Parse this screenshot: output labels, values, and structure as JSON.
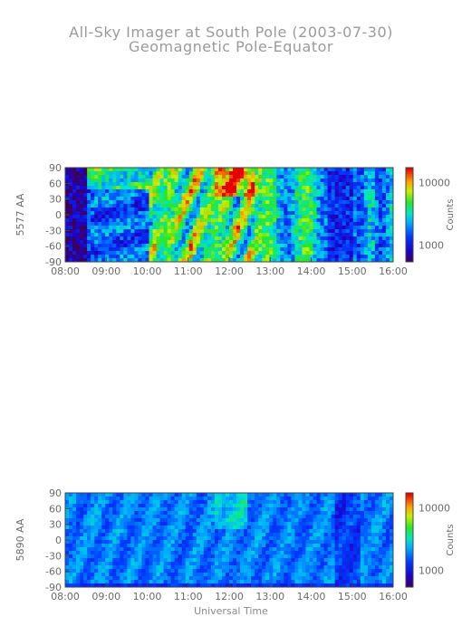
{
  "title_line1": "All-Sky Imager at South Pole (2003-07-30)",
  "title_line2": "Geomagnetic Pole-Equator",
  "xlabel": "Universal Time",
  "chart_data": [
    {
      "type": "heatmap",
      "ylabel": "5577 AA",
      "x_ticks": [
        "08:00",
        "09:00",
        "10:00",
        "11:00",
        "12:00",
        "13:00",
        "14:00",
        "15:00",
        "16:00"
      ],
      "y_ticks": [
        "90",
        "60",
        "30",
        "0",
        "-30",
        "-60",
        "-90"
      ],
      "xlim": [
        "08:00",
        "16:00"
      ],
      "ylim": [
        -90,
        90
      ],
      "colorbar": {
        "label": "Counts",
        "ticks": [
          "10000",
          "1000"
        ],
        "scale": "log"
      },
      "colormap": "rainbow",
      "description_regions": [
        {
          "x": [
            "08:00",
            "08:30"
          ],
          "level": "low"
        },
        {
          "x": [
            "10:00",
            "12:45"
          ],
          "level": "high"
        },
        {
          "x": [
            "14:30",
            "16:00"
          ],
          "level": "low"
        }
      ]
    },
    {
      "type": "heatmap",
      "ylabel": "5890 AA",
      "x_ticks": [
        "08:00",
        "09:00",
        "10:00",
        "11:00",
        "12:00",
        "13:00",
        "14:00",
        "15:00",
        "16:00"
      ],
      "y_ticks": [
        "90",
        "60",
        "30",
        "0",
        "-30",
        "-60",
        "-90"
      ],
      "xlim": [
        "08:00",
        "16:00"
      ],
      "ylim": [
        -90,
        90
      ],
      "colorbar": {
        "label": "Counts",
        "ticks": [
          "10000",
          "1000"
        ],
        "scale": "log"
      },
      "colormap": "rainbow"
    }
  ]
}
